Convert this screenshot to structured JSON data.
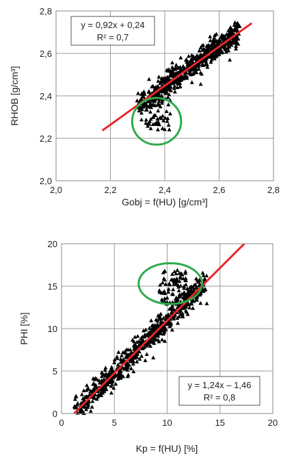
{
  "chart_data": [
    {
      "type": "scatter",
      "xlabel": "Gobj = f(HU) [g/cm³]",
      "ylabel": "RHOB [g/cm³]",
      "xlim": [
        2.0,
        2.8
      ],
      "ylim": [
        2.0,
        2.8
      ],
      "xticks": [
        "2,0",
        "2,2",
        "2,4",
        "2,6",
        "2,8"
      ],
      "yticks": [
        "2,0",
        "2,2",
        "2,4",
        "2,6",
        "2,8"
      ],
      "grid": true,
      "marker": "black-triangle",
      "trendline": {
        "slope": 0.92,
        "intercept": 0.24,
        "x_range": [
          2.17,
          2.72
        ],
        "color": "#e8262a"
      },
      "equation": "y = 0,92x + 0,24",
      "r2_label": "R² = 0,7",
      "annotation_ellipse": {
        "cx": 2.37,
        "cy": 2.28,
        "rx": 0.09,
        "ry": 0.11,
        "color": "#2eaa4c"
      },
      "point_cloud": {
        "main_band": {
          "x_range": [
            2.3,
            2.67
          ],
          "slope": 0.92,
          "intercept": 0.24,
          "spread": 0.05,
          "count": 650
        },
        "lower_cluster": {
          "x_range": [
            2.33,
            2.42
          ],
          "y_range": [
            2.24,
            2.4
          ],
          "count": 60
        }
      }
    },
    {
      "type": "scatter",
      "xlabel": "Kp = f(HU) [%]",
      "ylabel": "PHI [%]",
      "xlim": [
        0,
        20
      ],
      "ylim": [
        0,
        20
      ],
      "xticks": [
        "0",
        "5",
        "10",
        "15",
        "20"
      ],
      "yticks": [
        "0",
        "5",
        "10",
        "15",
        "20"
      ],
      "grid": true,
      "marker": "black-triangle",
      "trendline": {
        "slope": 1.24,
        "intercept": -1.46,
        "x_range": [
          1.2,
          17.3
        ],
        "color": "#e8262a"
      },
      "equation": "y = 1,24x – 1,46",
      "r2_label": "R² = 0,8",
      "annotation_ellipse": {
        "cx": 10.3,
        "cy": 15.3,
        "rx": 3.0,
        "ry": 2.4,
        "color": "#2eaa4c"
      },
      "point_cloud": {
        "main_band": {
          "x_range": [
            1.0,
            13.5
          ],
          "slope": 1.24,
          "intercept": -1.46,
          "spread": 1.4,
          "count": 700
        },
        "upper_cluster": {
          "x_range": [
            9.2,
            11.8
          ],
          "y_range": [
            13.0,
            17.0
          ],
          "count": 70
        }
      }
    }
  ]
}
